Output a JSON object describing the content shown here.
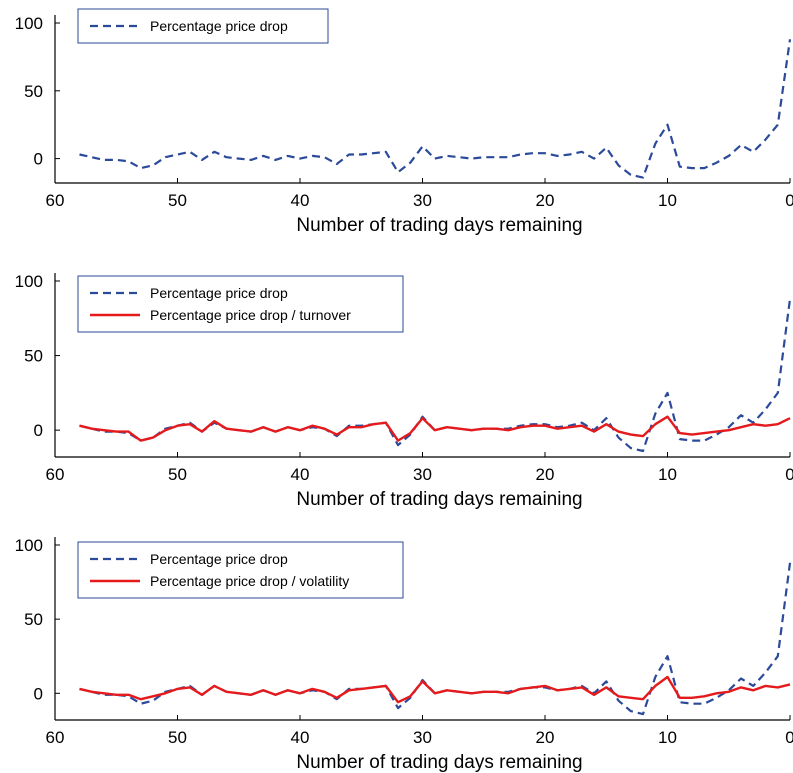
{
  "colors": {
    "drop": "#2c4a9a",
    "ratio": "#e41a1c",
    "axis": "#000000",
    "legend_border": "#2c4a9a"
  },
  "chart_data": [
    {
      "type": "line",
      "xlabel": "Number of trading days remaining",
      "ylabel": "",
      "xlim": [
        60,
        0
      ],
      "ylim": [
        -18,
        100
      ],
      "x_ticks": [
        "60",
        "50",
        "40",
        "30",
        "20",
        "10",
        "0"
      ],
      "y_ticks": [
        "0",
        "50",
        "100"
      ],
      "legend_position": "top-left",
      "x": [
        58,
        57,
        56,
        55,
        54,
        53,
        52,
        51,
        50,
        49,
        48,
        47,
        46,
        45,
        44,
        43,
        42,
        41,
        40,
        39,
        38,
        37,
        36,
        35,
        34,
        33,
        32,
        31,
        30,
        29,
        28,
        27,
        26,
        25,
        24,
        23,
        22,
        21,
        20,
        19,
        18,
        17,
        16,
        15,
        14,
        13,
        12,
        11,
        10,
        9,
        8,
        7,
        6,
        5,
        4,
        3,
        2,
        1,
        0
      ],
      "series": [
        {
          "name": "Percentage price drop",
          "style": "dashed",
          "color": "drop",
          "values": [
            3,
            1,
            -1,
            -1,
            -2,
            -7,
            -5,
            1,
            3,
            5,
            -1,
            5,
            1,
            0,
            -1,
            2,
            -1,
            2,
            0,
            2,
            1,
            -4,
            3,
            3,
            4,
            5,
            -10,
            -3,
            9,
            0,
            2,
            1,
            0,
            1,
            1,
            1,
            3,
            4,
            4,
            2,
            3,
            5,
            0,
            8,
            -5,
            -12,
            -14,
            11,
            25,
            -6,
            -7,
            -7,
            -3,
            2,
            10,
            5,
            14,
            25,
            88
          ]
        }
      ]
    },
    {
      "type": "line",
      "xlabel": "Number of trading days remaining",
      "ylabel": "",
      "xlim": [
        60,
        0
      ],
      "ylim": [
        -18,
        100
      ],
      "x_ticks": [
        "60",
        "50",
        "40",
        "30",
        "20",
        "10",
        "0"
      ],
      "y_ticks": [
        "0",
        "50",
        "100"
      ],
      "legend_position": "top-left",
      "x": [
        58,
        57,
        56,
        55,
        54,
        53,
        52,
        51,
        50,
        49,
        48,
        47,
        46,
        45,
        44,
        43,
        42,
        41,
        40,
        39,
        38,
        37,
        36,
        35,
        34,
        33,
        32,
        31,
        30,
        29,
        28,
        27,
        26,
        25,
        24,
        23,
        22,
        21,
        20,
        19,
        18,
        17,
        16,
        15,
        14,
        13,
        12,
        11,
        10,
        9,
        8,
        7,
        6,
        5,
        4,
        3,
        2,
        1,
        0
      ],
      "series": [
        {
          "name": "Percentage price drop",
          "style": "dashed",
          "color": "drop",
          "values": [
            3,
            1,
            -1,
            -1,
            -2,
            -7,
            -5,
            1,
            3,
            5,
            -1,
            5,
            1,
            0,
            -1,
            2,
            -1,
            2,
            0,
            2,
            1,
            -4,
            3,
            3,
            4,
            5,
            -10,
            -3,
            9,
            0,
            2,
            1,
            0,
            1,
            1,
            1,
            3,
            4,
            4,
            2,
            3,
            5,
            0,
            8,
            -5,
            -12,
            -14,
            11,
            25,
            -6,
            -7,
            -7,
            -3,
            2,
            10,
            5,
            14,
            25,
            88
          ]
        },
        {
          "name": "Percentage price drop / turnover",
          "style": "solid",
          "color": "ratio",
          "values": [
            3,
            1,
            0,
            -1,
            -1,
            -7,
            -5,
            0,
            3,
            4,
            -1,
            6,
            1,
            0,
            -1,
            2,
            -1,
            2,
            0,
            3,
            1,
            -3,
            2,
            2,
            4,
            5,
            -7,
            -2,
            8,
            0,
            2,
            1,
            0,
            1,
            1,
            0,
            2,
            3,
            3,
            1,
            2,
            3,
            -1,
            4,
            -1,
            -3,
            -4,
            4,
            9,
            -2,
            -3,
            -2,
            -1,
            0,
            2,
            4,
            3,
            4,
            8
          ]
        }
      ]
    },
    {
      "type": "line",
      "xlabel": "Number of trading days remaining",
      "ylabel": "",
      "xlim": [
        60,
        0
      ],
      "ylim": [
        -18,
        100
      ],
      "x_ticks": [
        "60",
        "50",
        "40",
        "30",
        "20",
        "10",
        "0"
      ],
      "y_ticks": [
        "0",
        "50",
        "100"
      ],
      "legend_position": "top-left",
      "x": [
        58,
        57,
        56,
        55,
        54,
        53,
        52,
        51,
        50,
        49,
        48,
        47,
        46,
        45,
        44,
        43,
        42,
        41,
        40,
        39,
        38,
        37,
        36,
        35,
        34,
        33,
        32,
        31,
        30,
        29,
        28,
        27,
        26,
        25,
        24,
        23,
        22,
        21,
        20,
        19,
        18,
        17,
        16,
        15,
        14,
        13,
        12,
        11,
        10,
        9,
        8,
        7,
        6,
        5,
        4,
        3,
        2,
        1,
        0
      ],
      "series": [
        {
          "name": "Percentage price drop",
          "style": "dashed",
          "color": "drop",
          "values": [
            3,
            1,
            -1,
            -1,
            -2,
            -7,
            -5,
            1,
            3,
            5,
            -1,
            5,
            1,
            0,
            -1,
            2,
            -1,
            2,
            0,
            2,
            1,
            -4,
            3,
            3,
            4,
            5,
            -10,
            -3,
            9,
            0,
            2,
            1,
            0,
            1,
            1,
            1,
            3,
            4,
            4,
            2,
            3,
            5,
            0,
            8,
            -5,
            -12,
            -14,
            11,
            25,
            -6,
            -7,
            -7,
            -3,
            2,
            10,
            5,
            14,
            25,
            88
          ]
        },
        {
          "name": "Percentage price drop / volatility",
          "style": "solid",
          "color": "ratio",
          "values": [
            3,
            1,
            0,
            -1,
            -1,
            -4,
            -2,
            0,
            3,
            4,
            -1,
            5,
            1,
            0,
            -1,
            2,
            -1,
            2,
            0,
            3,
            1,
            -3,
            2,
            3,
            4,
            5,
            -6,
            -2,
            8,
            0,
            2,
            1,
            0,
            1,
            1,
            0,
            3,
            4,
            5,
            2,
            3,
            4,
            -1,
            4,
            -2,
            -3,
            -4,
            5,
            11,
            -3,
            -3,
            -2,
            0,
            1,
            4,
            2,
            5,
            4,
            6
          ]
        }
      ]
    }
  ]
}
